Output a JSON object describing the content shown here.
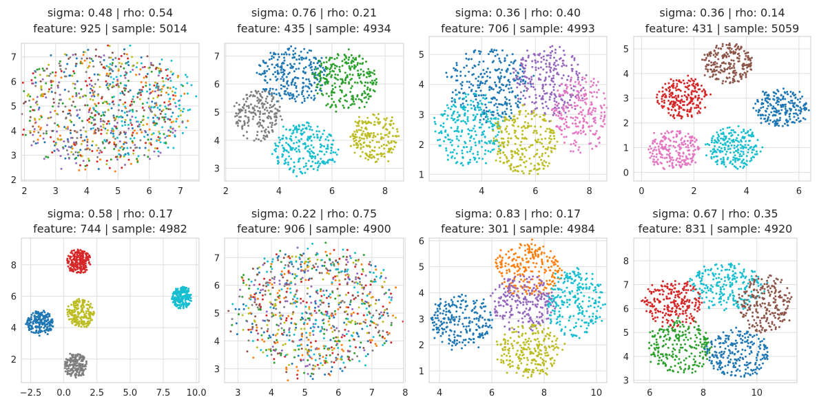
{
  "palette": {
    "blue": "#1f77b4",
    "orange": "#ff7f0e",
    "green": "#2ca02c",
    "red": "#d62728",
    "purple": "#9467bd",
    "brown": "#8c564b",
    "pink": "#e377c2",
    "gray": "#7f7f7f",
    "olive": "#bcbd22",
    "cyan": "#17becf"
  },
  "chart_data": [
    {
      "type": "scatter",
      "title": [
        "sigma: 0.48 | rho: 0.54",
        "feature: 925 | sample: 5014"
      ],
      "xlim": [
        1.9,
        7.6
      ],
      "ylim": [
        1.95,
        7.55
      ],
      "xticks": [
        2,
        3,
        4,
        5,
        6,
        7
      ],
      "yticks": [
        2,
        3,
        4,
        5,
        6,
        7
      ],
      "clusters": [
        {
          "color": "blue",
          "center": [
            4.5,
            5.0
          ],
          "radius": [
            2.7,
            2.45
          ],
          "n": 110
        },
        {
          "color": "orange",
          "center": [
            4.6,
            4.8
          ],
          "radius": [
            2.6,
            2.4
          ],
          "n": 100
        },
        {
          "color": "green",
          "center": [
            4.4,
            4.9
          ],
          "radius": [
            2.7,
            2.4
          ],
          "n": 100
        },
        {
          "color": "red",
          "center": [
            4.5,
            4.9
          ],
          "radius": [
            2.6,
            2.4
          ],
          "n": 90
        },
        {
          "color": "purple",
          "center": [
            4.5,
            4.7
          ],
          "radius": [
            2.6,
            2.4
          ],
          "n": 110
        },
        {
          "color": "brown",
          "center": [
            4.4,
            5.0
          ],
          "radius": [
            2.6,
            2.3
          ],
          "n": 90
        },
        {
          "color": "gray",
          "center": [
            4.2,
            5.0
          ],
          "radius": [
            2.5,
            2.3
          ],
          "n": 100
        },
        {
          "color": "olive",
          "center": [
            4.6,
            4.9
          ],
          "radius": [
            2.6,
            2.4
          ],
          "n": 100
        },
        {
          "color": "cyan",
          "center": [
            5.8,
            5.0
          ],
          "radius": [
            1.7,
            2.2
          ],
          "n": 120
        }
      ]
    },
    {
      "type": "scatter",
      "title": [
        "sigma: 0.76 | rho: 0.21",
        "feature: 435 | sample: 4934"
      ],
      "xlim": [
        1.95,
        8.7
      ],
      "ylim": [
        2.55,
        7.45
      ],
      "xticks": [
        2,
        4,
        6,
        8
      ],
      "yticks": [
        3,
        4,
        5,
        6,
        7
      ],
      "clusters": [
        {
          "color": "blue",
          "center": [
            4.5,
            6.3
          ],
          "radius": [
            1.3,
            1.0
          ],
          "n": 260
        },
        {
          "color": "green",
          "center": [
            6.5,
            6.1
          ],
          "radius": [
            1.2,
            1.0
          ],
          "n": 260
        },
        {
          "color": "gray",
          "center": [
            3.2,
            4.9
          ],
          "radius": [
            0.9,
            0.9
          ],
          "n": 200
        },
        {
          "color": "cyan",
          "center": [
            5.0,
            3.7
          ],
          "radius": [
            1.2,
            0.9
          ],
          "n": 240
        },
        {
          "color": "olive",
          "center": [
            7.6,
            4.1
          ],
          "radius": [
            0.9,
            0.85
          ],
          "n": 200
        }
      ]
    },
    {
      "type": "scatter",
      "title": [
        "sigma: 0.36 | rho: 0.40",
        "feature: 706 | sample: 4993"
      ],
      "xlim": [
        2.05,
        8.65
      ],
      "ylim": [
        0.78,
        5.6
      ],
      "xticks": [
        4,
        6,
        8
      ],
      "yticks": [
        1,
        2,
        3,
        4,
        5
      ],
      "clusters": [
        {
          "color": "blue",
          "center": [
            4.2,
            4.0
          ],
          "radius": [
            1.5,
            1.2
          ],
          "n": 280
        },
        {
          "color": "purple",
          "center": [
            6.5,
            4.1
          ],
          "radius": [
            1.3,
            1.2
          ],
          "n": 250
        },
        {
          "color": "pink",
          "center": [
            7.7,
            3.0
          ],
          "radius": [
            1.0,
            1.3
          ],
          "n": 220
        },
        {
          "color": "cyan",
          "center": [
            3.5,
            2.5
          ],
          "radius": [
            1.3,
            1.2
          ],
          "n": 260
        },
        {
          "color": "olive",
          "center": [
            5.6,
            2.1
          ],
          "radius": [
            1.2,
            1.1
          ],
          "n": 250
        }
      ]
    },
    {
      "type": "scatter",
      "title": [
        "sigma: 0.36 | rho: 0.14",
        "feature: 431 | sample: 5059"
      ],
      "xlim": [
        -0.3,
        6.45
      ],
      "ylim": [
        -0.35,
        5.5
      ],
      "xticks": [
        0,
        2,
        4,
        6
      ],
      "yticks": [
        0,
        1,
        2,
        3,
        4,
        5
      ],
      "clusters": [
        {
          "color": "brown",
          "center": [
            3.3,
            4.4
          ],
          "radius": [
            0.95,
            0.8
          ],
          "n": 220
        },
        {
          "color": "red",
          "center": [
            1.6,
            3.0
          ],
          "radius": [
            1.0,
            0.85
          ],
          "n": 220
        },
        {
          "color": "blue",
          "center": [
            5.3,
            2.6
          ],
          "radius": [
            1.0,
            0.75
          ],
          "n": 220
        },
        {
          "color": "pink",
          "center": [
            1.2,
            0.9
          ],
          "radius": [
            1.0,
            0.8
          ],
          "n": 210
        },
        {
          "color": "cyan",
          "center": [
            3.5,
            1.0
          ],
          "radius": [
            1.0,
            0.85
          ],
          "n": 220
        }
      ]
    },
    {
      "type": "scatter",
      "title": [
        "sigma: 0.58 | rho: 0.17",
        "feature: 744 | sample: 4982"
      ],
      "xlim": [
        -3.2,
        10.2
      ],
      "ylim": [
        0.5,
        9.7
      ],
      "xticks": [
        -2.5,
        0.0,
        2.5,
        5.0,
        7.5,
        10.0
      ],
      "yticks": [
        2,
        4,
        6,
        8
      ],
      "tick_labels_x": [
        "−2.5",
        "0.0",
        "2.5",
        "5.0",
        "7.5",
        "10.0"
      ],
      "clusters": [
        {
          "color": "red",
          "center": [
            1.1,
            8.2
          ],
          "radius": [
            0.9,
            0.75
          ],
          "n": 200
        },
        {
          "color": "olive",
          "center": [
            1.3,
            4.9
          ],
          "radius": [
            1.0,
            0.9
          ],
          "n": 200
        },
        {
          "color": "blue",
          "center": [
            -1.8,
            4.3
          ],
          "radius": [
            1.0,
            0.75
          ],
          "n": 200
        },
        {
          "color": "gray",
          "center": [
            0.9,
            1.6
          ],
          "radius": [
            0.85,
            0.8
          ],
          "n": 200
        },
        {
          "color": "cyan",
          "center": [
            8.9,
            5.9
          ],
          "radius": [
            0.75,
            0.7
          ],
          "n": 200
        }
      ]
    },
    {
      "type": "scatter",
      "title": [
        "sigma: 0.22 | rho: 0.75",
        "feature: 906 | sample: 4900"
      ],
      "xlim": [
        2.6,
        7.95
      ],
      "ylim": [
        2.5,
        7.7
      ],
      "xticks": [
        3,
        4,
        5,
        6,
        7,
        8
      ],
      "yticks": [
        3,
        4,
        5,
        6,
        7
      ],
      "clusters": [
        {
          "color": "blue",
          "center": [
            5.3,
            5.1
          ],
          "radius": [
            2.4,
            2.3
          ],
          "n": 110
        },
        {
          "color": "orange",
          "center": [
            5.3,
            5.0
          ],
          "radius": [
            2.4,
            2.3
          ],
          "n": 110
        },
        {
          "color": "green",
          "center": [
            5.2,
            5.1
          ],
          "radius": [
            2.4,
            2.3
          ],
          "n": 100
        },
        {
          "color": "red",
          "center": [
            5.4,
            5.0
          ],
          "radius": [
            2.3,
            2.3
          ],
          "n": 90
        },
        {
          "color": "purple",
          "center": [
            5.3,
            5.2
          ],
          "radius": [
            2.3,
            2.2
          ],
          "n": 100
        },
        {
          "color": "brown",
          "center": [
            5.2,
            5.0
          ],
          "radius": [
            2.4,
            2.3
          ],
          "n": 90
        },
        {
          "color": "gray",
          "center": [
            5.3,
            5.1
          ],
          "radius": [
            2.3,
            2.2
          ],
          "n": 90
        },
        {
          "color": "olive",
          "center": [
            5.4,
            5.0
          ],
          "radius": [
            2.4,
            2.3
          ],
          "n": 100
        },
        {
          "color": "cyan",
          "center": [
            5.3,
            5.1
          ],
          "radius": [
            2.4,
            2.3
          ],
          "n": 110
        }
      ]
    },
    {
      "type": "scatter",
      "title": [
        "sigma: 0.83 | rho: 0.17",
        "feature: 301 | sample: 4984"
      ],
      "xlim": [
        3.6,
        10.4
      ],
      "ylim": [
        0.55,
        6.1
      ],
      "xticks": [
        4,
        6,
        8,
        10
      ],
      "yticks": [
        1,
        2,
        3,
        4,
        5,
        6
      ],
      "clusters": [
        {
          "color": "orange",
          "center": [
            7.4,
            4.9
          ],
          "radius": [
            1.3,
            1.0
          ],
          "n": 240
        },
        {
          "color": "purple",
          "center": [
            7.2,
            3.6
          ],
          "radius": [
            1.2,
            1.1
          ],
          "n": 240
        },
        {
          "color": "cyan",
          "center": [
            9.2,
            3.6
          ],
          "radius": [
            1.1,
            1.3
          ],
          "n": 240
        },
        {
          "color": "blue",
          "center": [
            4.8,
            2.9
          ],
          "radius": [
            1.2,
            1.0
          ],
          "n": 240
        },
        {
          "color": "olive",
          "center": [
            7.4,
            1.8
          ],
          "radius": [
            1.2,
            1.0
          ],
          "n": 240
        }
      ]
    },
    {
      "type": "scatter",
      "title": [
        "sigma: 0.67 | rho: 0.35",
        "feature: 831 | sample: 4920"
      ],
      "xlim": [
        5.4,
        11.5
      ],
      "ylim": [
        2.9,
        8.95
      ],
      "xticks": [
        6,
        8,
        10
      ],
      "yticks": [
        3,
        4,
        5,
        6,
        7,
        8
      ],
      "clusters": [
        {
          "color": "cyan",
          "center": [
            8.9,
            6.9
          ],
          "radius": [
            1.4,
            1.0
          ],
          "n": 240
        },
        {
          "color": "red",
          "center": [
            6.9,
            6.2
          ],
          "radius": [
            1.1,
            1.0
          ],
          "n": 230
        },
        {
          "color": "brown",
          "center": [
            10.3,
            6.2
          ],
          "radius": [
            1.0,
            1.2
          ],
          "n": 230
        },
        {
          "color": "green",
          "center": [
            7.1,
            4.4
          ],
          "radius": [
            1.2,
            1.1
          ],
          "n": 230
        },
        {
          "color": "blue",
          "center": [
            9.3,
            4.1
          ],
          "radius": [
            1.2,
            1.0
          ],
          "n": 240
        }
      ]
    }
  ]
}
